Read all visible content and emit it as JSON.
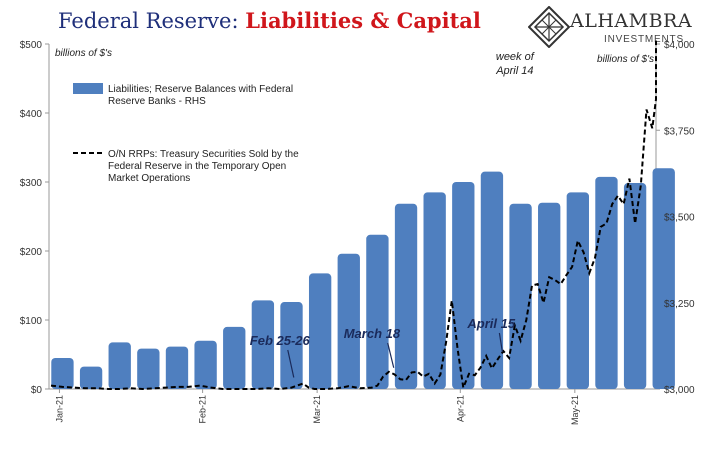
{
  "title": {
    "part1": "Federal Reserve: ",
    "part2": "Liabilities & Capital"
  },
  "logo": {
    "name": "ALHAMBRA",
    "sub": "INVESTMENTS"
  },
  "colors": {
    "bars": "#4f7fbf",
    "line": "#000000",
    "title_blue": "#1f2f7a",
    "title_red": "#d0161b"
  },
  "chart_data": {
    "type": "bar",
    "left_unit_label": "billions of $'s",
    "right_unit_label": "billions of $'s",
    "left_axis": {
      "ylim": [
        0,
        500
      ],
      "ticks": [
        "$0",
        "$100",
        "$200",
        "$300",
        "$400",
        "$500"
      ]
    },
    "right_axis": {
      "ylim": [
        3000,
        4000
      ],
      "ticks": [
        "$3,000",
        "$3,250",
        "$3,500",
        "$3,750",
        "$4,000"
      ],
      "tick_values": [
        3000,
        3250,
        3500,
        3750,
        4000
      ]
    },
    "x_ticks": [
      "Jan-21",
      "Feb-21",
      "Mar-21",
      "Apr-21",
      "May-21"
    ],
    "x_tick_index": [
      0,
      5,
      9,
      14,
      18
    ],
    "n_weeks": 22,
    "legend": [
      "Liabilities; Reserve Balances with Federal Reserve Banks - RHS",
      "O/N RRPs: Treasury Securities Sold by the Federal Reserve in the Temporary Open Market Operations"
    ],
    "legend_lines": [
      [
        "Liabilities; Reserve Balances with Federal",
        "Reserve Banks - RHS"
      ],
      [
        "O/N RRPs: Treasury Securities Sold by the",
        "Federal Reserve in the Temporary Open",
        "Market Operations"
      ]
    ],
    "series": [
      {
        "name": "Liabilities; Reserve Balances with Federal Reserve Banks - RHS",
        "type": "bar",
        "axis": "right",
        "x": [
          0,
          1,
          2,
          3,
          4,
          5,
          6,
          7,
          8,
          9,
          10,
          11,
          12,
          13,
          14,
          15,
          16,
          17,
          18,
          19,
          20,
          21
        ],
        "values": [
          3090,
          3065,
          3135,
          3117,
          3123,
          3140,
          3180,
          3257,
          3252,
          3335,
          3392,
          3447,
          3537,
          3570,
          3600,
          3630,
          3537,
          3540,
          3570,
          3615,
          3597,
          3640
        ]
      },
      {
        "name": "O/N RRPs: Treasury Securities Sold by the Federal Reserve in the Temporary Open Market Operations",
        "type": "line",
        "axis": "left",
        "x": [
          -0.4,
          0,
          0.4,
          0.8,
          1.2,
          1.6,
          2,
          2.4,
          2.8,
          3.2,
          3.6,
          4,
          4.4,
          4.8,
          5.2,
          5.6,
          6,
          6.4,
          6.8,
          7.2,
          7.6,
          8,
          8.2,
          8.4,
          8.6,
          8.8,
          9.2,
          9.6,
          10,
          10.4,
          10.8,
          11,
          11.2,
          11.4,
          11.6,
          11.8,
          12,
          12.2,
          12.4,
          12.6,
          12.8,
          13,
          13.2,
          13.4,
          13.6,
          13.8,
          14,
          14.2,
          14.4,
          14.6,
          14.8,
          15,
          15.2,
          15.4,
          15.6,
          15.8,
          16,
          16.2,
          16.4,
          16.6,
          16.8,
          17,
          17.2,
          17.4,
          17.6,
          17.8,
          18,
          18.2,
          18.4,
          18.6,
          18.8,
          19,
          19.2,
          19.4,
          19.6,
          19.8,
          20,
          20.2,
          20.4,
          20.6,
          20.8,
          21,
          21.2,
          21.4
        ],
        "values": [
          5,
          3,
          2,
          1,
          1,
          0,
          0,
          1,
          0,
          1,
          2,
          3,
          3,
          5,
          2,
          0,
          0,
          0,
          0,
          1,
          0,
          2,
          5,
          8,
          2,
          0,
          0,
          1,
          4,
          1,
          2,
          5,
          18,
          25,
          21,
          14,
          13,
          24,
          25,
          18,
          22,
          8,
          21,
          68,
          128,
          58,
          2,
          22,
          20,
          31,
          48,
          30,
          43,
          55,
          45,
          92,
          70,
          100,
          150,
          152,
          125,
          162,
          158,
          152,
          165,
          177,
          215,
          198,
          168,
          190,
          235,
          240,
          268,
          280,
          268,
          305,
          240,
          295,
          405,
          378,
          420,
          445,
          470,
          505
        ]
      }
    ],
    "annotations": [
      {
        "text": "Feb 25-26",
        "x": 7.8,
        "y": 5
      },
      {
        "text": "March 18",
        "x": 11.5,
        "y": 25
      },
      {
        "text": "April 15",
        "x": 15.4,
        "y": 45
      },
      {
        "text": "week of",
        "x": 15.8,
        "y": 480
      },
      {
        "text": "April 14",
        "x": 15.8,
        "y": 463
      }
    ]
  }
}
